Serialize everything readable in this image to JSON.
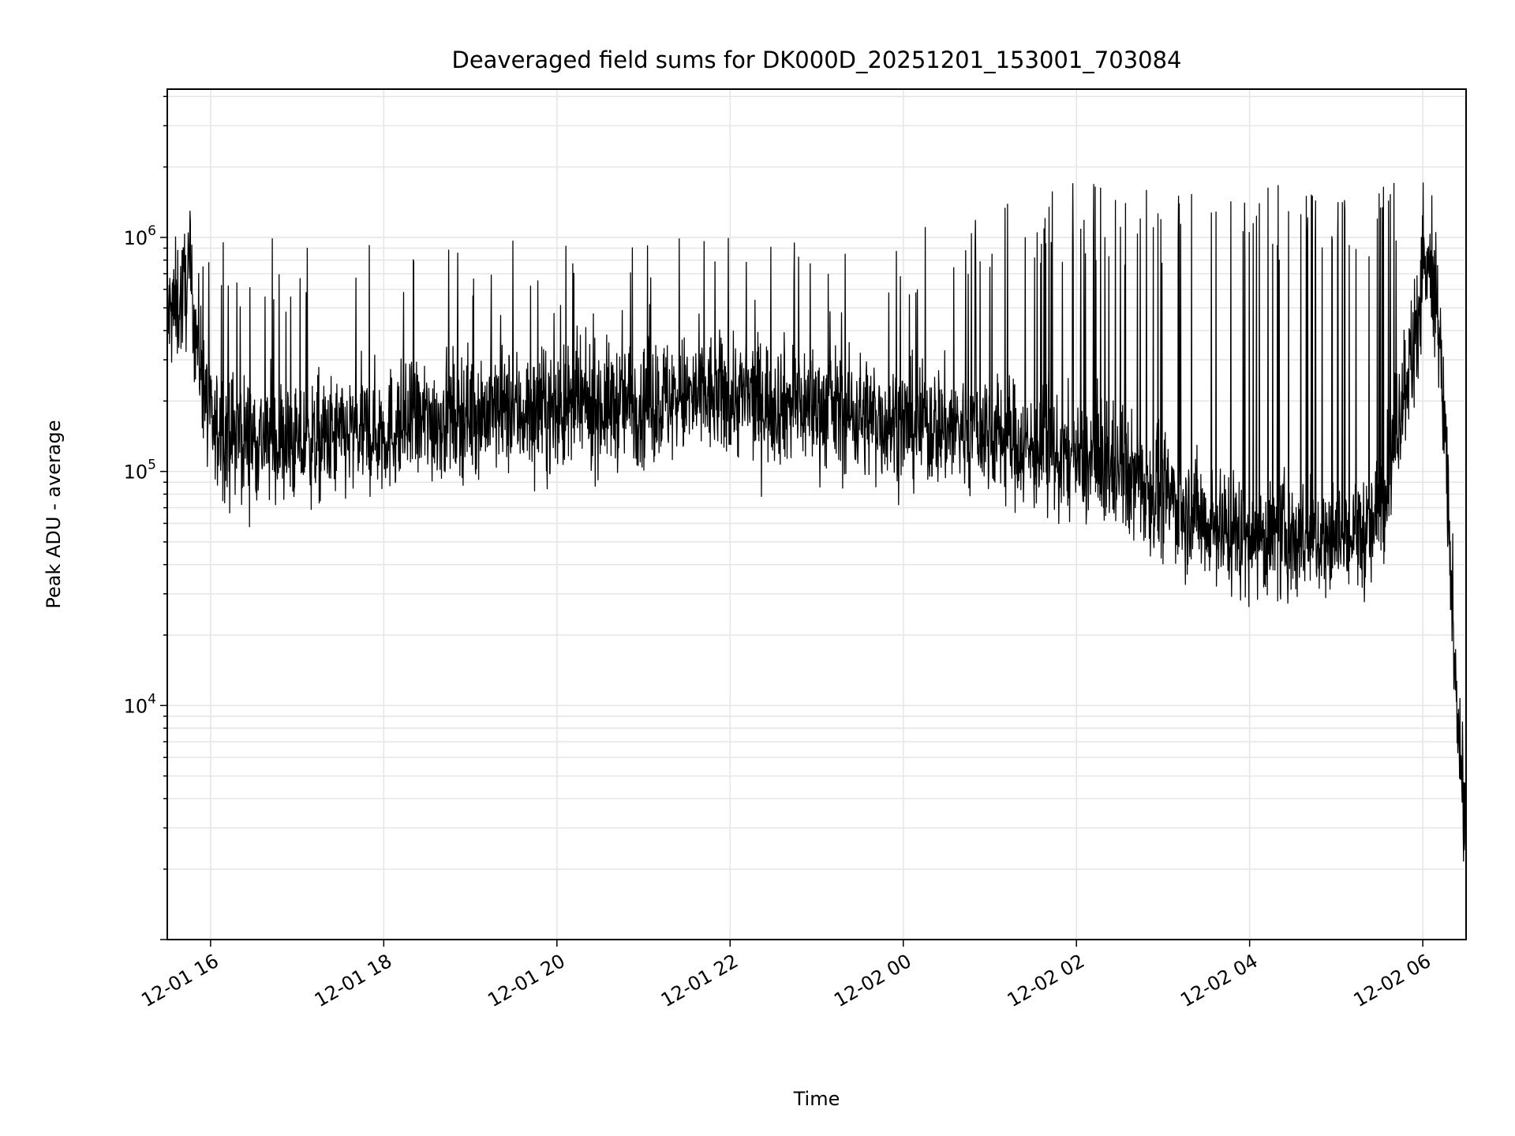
{
  "chart_data": {
    "type": "line",
    "title": "Deaveraged field sums for DK000D_20251201_153001_703084",
    "xlabel": "Time",
    "ylabel": "Peak ADU - average",
    "yscale": "log",
    "ylim": [
      1000,
      4300000
    ],
    "xlim_minutes_from_start": [
      0,
      900
    ],
    "x_start_label": "12-01 15:30",
    "x_ticks": [
      {
        "minute": 30,
        "label": "12-01 16"
      },
      {
        "minute": 150,
        "label": "12-01 18"
      },
      {
        "minute": 270,
        "label": "12-01 20"
      },
      {
        "minute": 390,
        "label": "12-01 22"
      },
      {
        "minute": 510,
        "label": "12-02 00"
      },
      {
        "minute": 630,
        "label": "12-02 02"
      },
      {
        "minute": 750,
        "label": "12-02 04"
      },
      {
        "minute": 870,
        "label": "12-02 06"
      }
    ],
    "y_ticks": [
      {
        "value": 10000,
        "base": "10",
        "exp": "4"
      },
      {
        "value": 100000,
        "base": "10",
        "exp": "5"
      },
      {
        "value": 1000000,
        "base": "10",
        "exp": "6"
      }
    ],
    "grid": true,
    "series": [
      {
        "name": "deaveraged field sum",
        "color": "#000000",
        "baseline_minute": [
          0,
          10,
          15,
          20,
          25,
          30,
          60,
          90,
          120,
          150,
          210,
          270,
          330,
          390,
          450,
          510,
          570,
          600,
          630,
          660,
          690,
          720,
          750,
          810,
          835,
          845,
          855,
          865,
          870,
          875,
          880,
          885,
          890,
          895,
          900
        ],
        "baseline_value": [
          450000,
          550000,
          700000,
          400000,
          250000,
          150000,
          140000,
          130000,
          140000,
          150000,
          180000,
          180000,
          200000,
          210000,
          190000,
          160000,
          150000,
          125000,
          110000,
          100000,
          80000,
          62000,
          52000,
          52000,
          55000,
          90000,
          200000,
          400000,
          800000,
          700000,
          500000,
          150000,
          30000,
          8000,
          2500
        ],
        "spike_max_minute": [
          0,
          30,
          500,
          560,
          600,
          840,
          860,
          870,
          878,
          880,
          900
        ],
        "spike_max_value": [
          1000000,
          1000000,
          1000000,
          1400000,
          1700000,
          1700000,
          2000000,
          2900000,
          900000,
          0,
          0
        ],
        "spike_rate_minute": [
          0,
          30,
          510,
          570,
          630,
          840,
          860,
          900
        ],
        "spike_rate": [
          0.02,
          0.03,
          0.035,
          0.06,
          0.09,
          0.08,
          0.0,
          0.0
        ]
      }
    ]
  }
}
